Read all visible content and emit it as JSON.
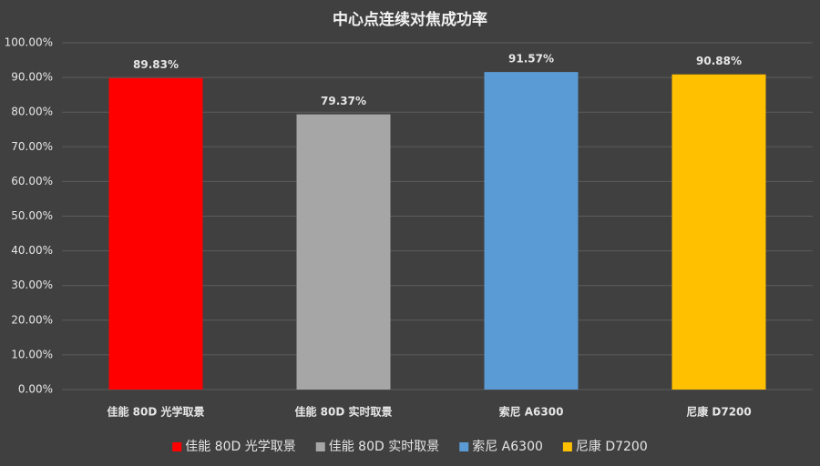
{
  "chart_data": {
    "type": "bar",
    "title": "中心点连续对焦成功率",
    "categories": [
      "佳能 80D 光学取景",
      "佳能 80D 实时取景",
      "索尼 A6300",
      "尼康 D7200"
    ],
    "values": [
      89.83,
      79.37,
      91.57,
      90.88
    ],
    "value_labels": [
      "89.83%",
      "79.37%",
      "91.57%",
      "90.88%"
    ],
    "colors": [
      "#ff0000",
      "#a6a6a6",
      "#5b9bd5",
      "#ffc000"
    ],
    "ylim": [
      0,
      100
    ],
    "yticks": [
      {
        "value": 0,
        "label": "0.00%"
      },
      {
        "value": 10,
        "label": "10.00%"
      },
      {
        "value": 20,
        "label": "20.00%"
      },
      {
        "value": 30,
        "label": "30.00%"
      },
      {
        "value": 40,
        "label": "40.00%"
      },
      {
        "value": 50,
        "label": "50.00%"
      },
      {
        "value": 60,
        "label": "60.00%"
      },
      {
        "value": 70,
        "label": "70.00%"
      },
      {
        "value": 80,
        "label": "80.00%"
      },
      {
        "value": 90,
        "label": "90.00%"
      },
      {
        "value": 100,
        "label": "100.00%"
      }
    ],
    "grid": true,
    "legend": "bottom"
  }
}
